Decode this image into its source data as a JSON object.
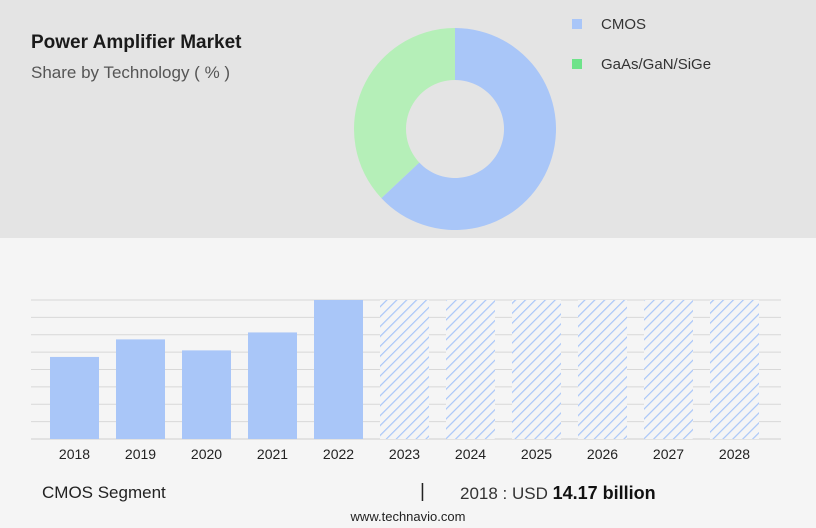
{
  "header": {
    "title": "Power Amplifier Market",
    "subtitle": "Share by Technology ( % )"
  },
  "legend": [
    {
      "label": "CMOS",
      "color": "#a9c6f8"
    },
    {
      "label": "GaAs/GaN/SiGe",
      "color": "#6ee38a"
    }
  ],
  "chart_data": [
    {
      "type": "pie",
      "variant": "donut",
      "categories": [
        "CMOS",
        "GaAs/GaN/SiGe"
      ],
      "values": [
        63,
        37
      ],
      "colors": [
        "#a9c6f8",
        "#b5efb8"
      ]
    },
    {
      "type": "bar",
      "categories": [
        "2018",
        "2019",
        "2020",
        "2021",
        "2022",
        "2023",
        "2024",
        "2025",
        "2026",
        "2027",
        "2028"
      ],
      "values": [
        14.17,
        17.2,
        15.3,
        18.4,
        24.0,
        24.0,
        24.0,
        24.0,
        24.0,
        24.0,
        24.0
      ],
      "forecast_from": "2023",
      "bar_color": "#a9c6f8",
      "forecast_pattern": "diagonal-hatch",
      "ylim": [
        0,
        24
      ],
      "grid": true
    }
  ],
  "footer": {
    "segment": "CMOS Segment",
    "divider": "|",
    "year_label": "2018 : USD",
    "amount": "14.17 billion",
    "website": "www.technavio.com"
  }
}
